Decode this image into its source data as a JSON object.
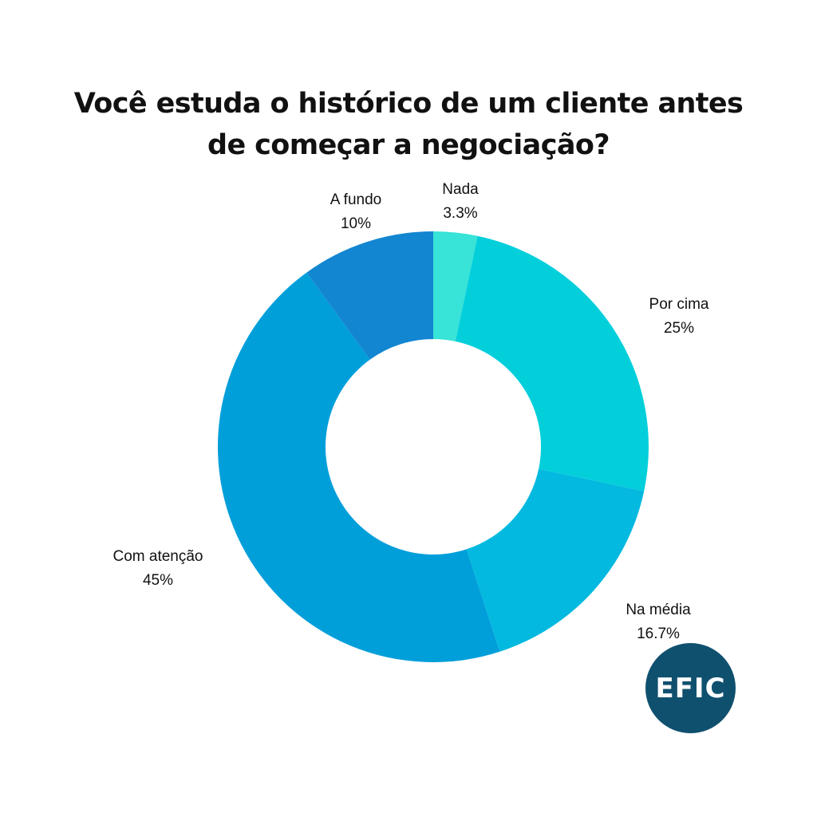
{
  "chart_data": {
    "type": "pie",
    "title": "Você estuda o histórico de um cliente antes de começar a negociação?",
    "title_lines": [
      "Você estuda o histórico de um cliente antes",
      "de começar a negociação?"
    ],
    "donut": true,
    "slices": [
      {
        "label": "Nada",
        "value": 3.3,
        "value_label": "3.3%",
        "color": "#38e3d7"
      },
      {
        "label": "Por cima",
        "value": 25,
        "value_label": "25%",
        "color": "#03cfdb"
      },
      {
        "label": "Na média",
        "value": 16.7,
        "value_label": "16.7%",
        "color": "#03b9df"
      },
      {
        "label": "Com atenção",
        "value": 45,
        "value_label": "45%",
        "color": "#009fda"
      },
      {
        "label": "A fundo",
        "value": 10,
        "value_label": "10%",
        "color": "#1386d1"
      }
    ]
  },
  "logo": {
    "text": "EFIC",
    "color": "#10506f"
  }
}
